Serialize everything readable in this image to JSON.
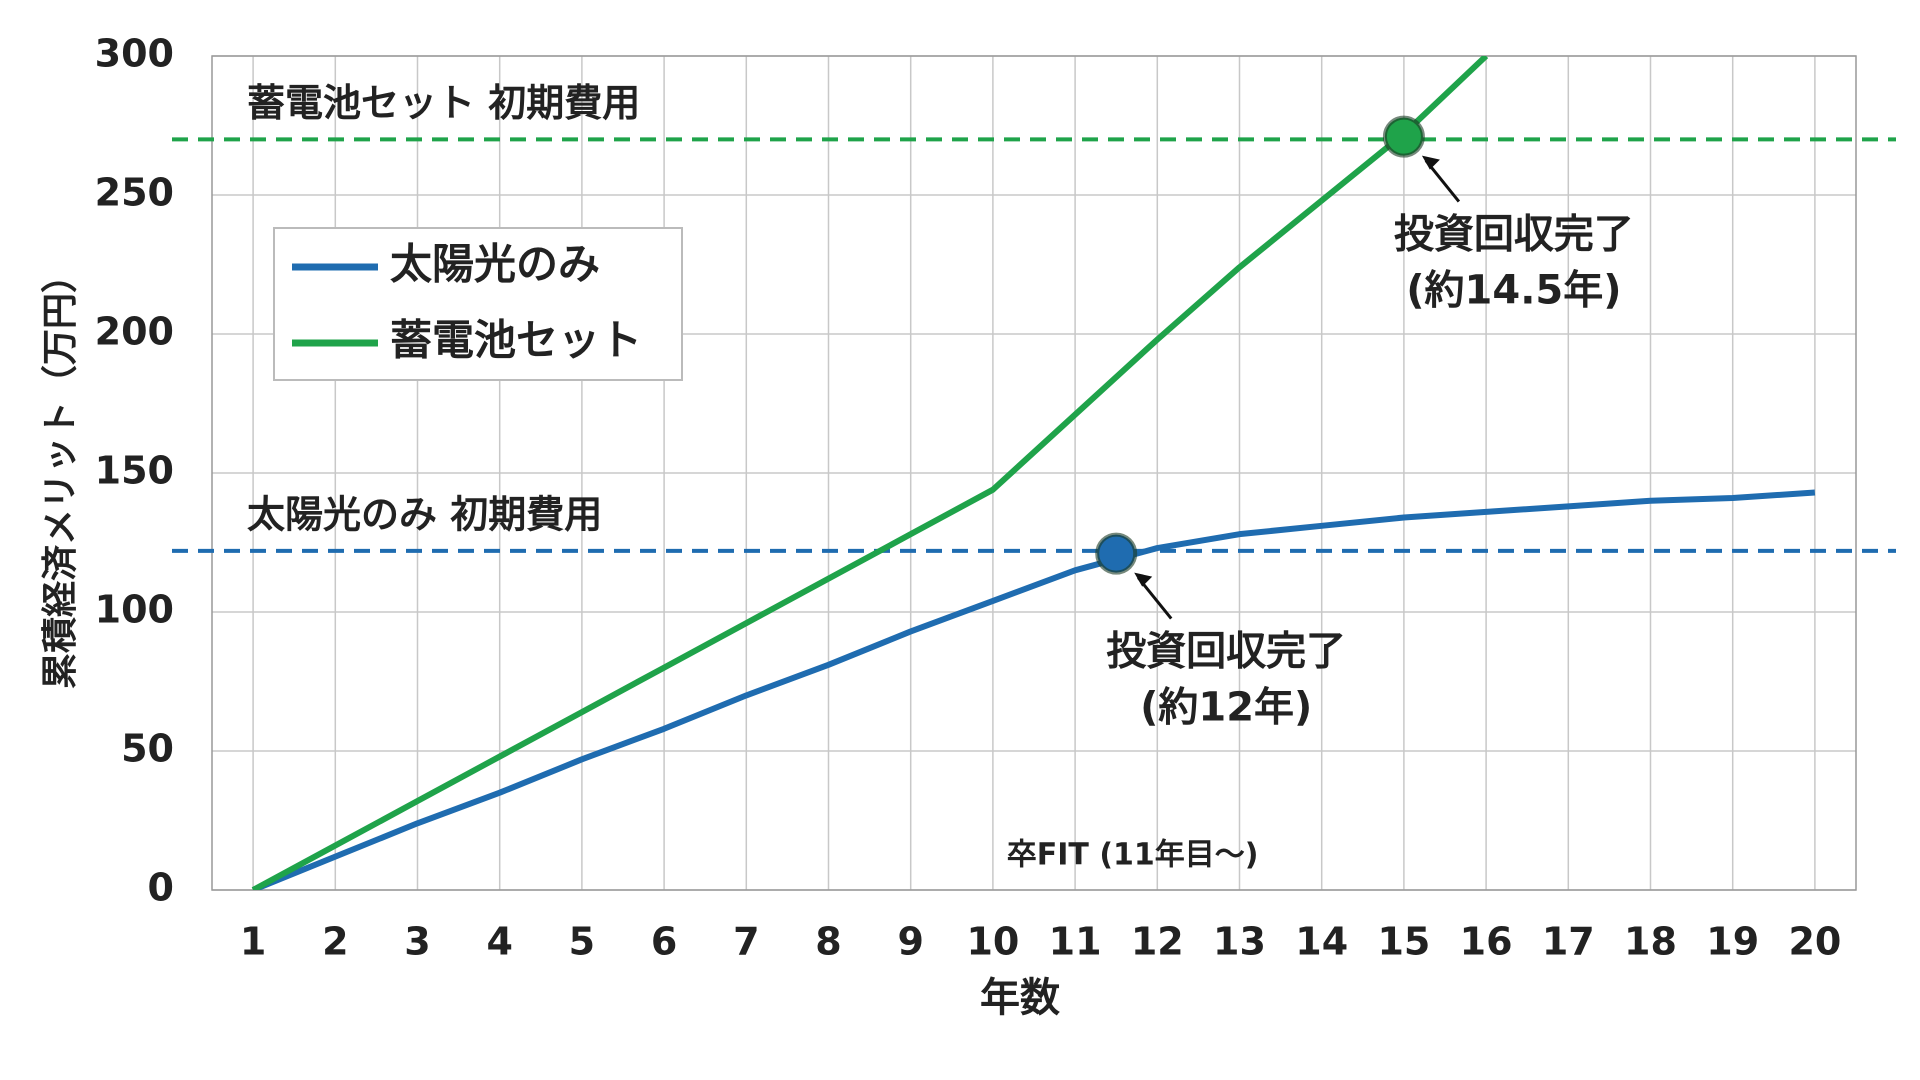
{
  "chart_data": {
    "type": "line",
    "xlabel": "年数",
    "ylabel": "累積経済メリット（万円）",
    "x": [
      1,
      2,
      3,
      4,
      5,
      6,
      7,
      8,
      9,
      10,
      11,
      12,
      13,
      14,
      15,
      16,
      17,
      18,
      19,
      20
    ],
    "xlim": [
      0.5,
      20.5
    ],
    "xticks": [
      1,
      2,
      3,
      4,
      5,
      6,
      7,
      8,
      9,
      10,
      11,
      12,
      13,
      14,
      15,
      16,
      17,
      18,
      19,
      20
    ],
    "ylim": [
      0,
      300
    ],
    "yticks": [
      0,
      50,
      100,
      150,
      200,
      250,
      300
    ],
    "grid": true,
    "legend": "upper left",
    "series": [
      {
        "name": "太陽光のみ",
        "color": "#1f6cb0",
        "values": [
          0,
          12,
          24,
          35,
          47,
          58,
          70,
          81,
          93,
          104,
          115,
          123,
          128,
          131,
          134,
          136,
          138,
          140,
          141,
          143
        ]
      },
      {
        "name": "蓄電池セット",
        "color": "#1fa34a",
        "values": [
          0,
          16,
          32,
          48,
          64,
          80,
          96,
          112,
          128,
          144,
          171,
          198,
          224,
          248,
          272,
          300,
          null,
          null,
          null,
          null
        ]
      }
    ],
    "reference_lines": [
      {
        "value": 270,
        "label": "蓄電池セット 初期費用",
        "color": "#1fa34a"
      },
      {
        "value": 122,
        "label": "太陽光のみ 初期費用",
        "color": "#1f6cb0"
      }
    ],
    "points": [
      {
        "x": 11.5,
        "y": 121,
        "color": "#1f6cb0",
        "label": [
          "投資回収完了",
          "(約12年)"
        ]
      },
      {
        "x": 15,
        "y": 271,
        "color": "#1fa34a",
        "label": [
          "投資回収完了",
          "(約14.5年)"
        ]
      }
    ],
    "note": "卒FIT (11年目～)"
  }
}
